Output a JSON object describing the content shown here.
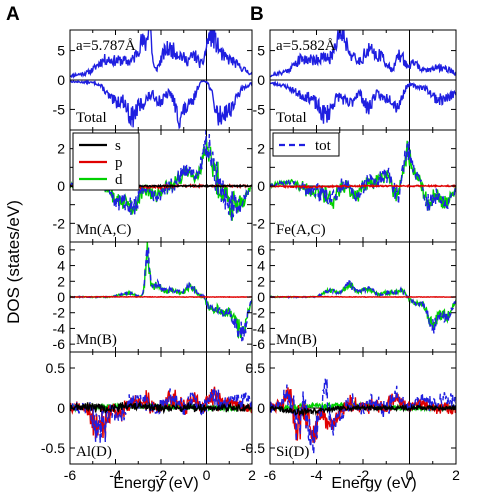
{
  "figure": {
    "panel_letters": [
      "A",
      "B"
    ],
    "ylabel": "DOS (states/eV)",
    "xlabel": "Energy (eV)"
  },
  "colors": {
    "total": "#1f1fe0",
    "s": "#000000",
    "p": "#e00000",
    "d": "#00d000",
    "tot": "#1f1fe0",
    "axis": "#000000"
  },
  "chart_data": [
    {
      "type": "line",
      "column": "A",
      "row": 1,
      "label": "Total",
      "annotation": "a=5.787Å",
      "xlim": [
        -6,
        2
      ],
      "ylim": [
        -8.5,
        8.5
      ],
      "yticks": [
        -5,
        0,
        5
      ],
      "series": [
        {
          "name": "Total",
          "color": "#1f1fe0",
          "x": [],
          "y": []
        }
      ]
    },
    {
      "type": "line",
      "column": "B",
      "row": 1,
      "label": "Total",
      "annotation": "a=5.582Å",
      "xlim": [
        -6,
        2
      ],
      "ylim": [
        -8.5,
        8.5
      ],
      "yticks": [
        -5,
        0,
        5
      ],
      "series": [
        {
          "name": "Total",
          "color": "#1f1fe0",
          "x": [],
          "y": []
        }
      ]
    },
    {
      "type": "line",
      "column": "A",
      "row": 2,
      "label": "Mn(A,C)",
      "xlim": [
        -6,
        2
      ],
      "ylim": [
        -3,
        3
      ],
      "yticks": [
        -2,
        -1,
        0,
        1,
        2
      ],
      "legend": {
        "entries": [
          "s",
          "p",
          "d"
        ],
        "placement": "top-left"
      },
      "series": []
    },
    {
      "type": "line",
      "column": "B",
      "row": 2,
      "label": "Fe(A,C)",
      "xlim": [
        -6,
        2
      ],
      "ylim": [
        -3,
        3
      ],
      "yticks": [
        -2,
        -1,
        0,
        1,
        2
      ],
      "legend": {
        "entries": [
          "tot"
        ],
        "placement": "top-left"
      },
      "series": []
    },
    {
      "type": "line",
      "column": "A",
      "row": 3,
      "label": "Mn(B)",
      "xlim": [
        -6,
        2
      ],
      "ylim": [
        -7,
        7
      ],
      "yticks": [
        -6,
        -4,
        -2,
        0,
        2,
        4,
        6
      ],
      "series": []
    },
    {
      "type": "line",
      "column": "B",
      "row": 3,
      "label": "Mn(B)",
      "xlim": [
        -6,
        2
      ],
      "ylim": [
        -7,
        7
      ],
      "yticks": [
        -6,
        -4,
        -2,
        0,
        2,
        4,
        6
      ],
      "series": []
    },
    {
      "type": "line",
      "column": "A",
      "row": 4,
      "label": "Al(D)",
      "xlim": [
        -6,
        2
      ],
      "ylim": [
        -0.7,
        0.7
      ],
      "yticks": [
        -0.5,
        0,
        0.5
      ],
      "xticks": [
        -6,
        -4,
        -2,
        0,
        2
      ],
      "series": []
    },
    {
      "type": "line",
      "column": "B",
      "row": 4,
      "label": "Si(D)",
      "xlim": [
        -6,
        2
      ],
      "ylim": [
        -0.7,
        0.7
      ],
      "yticks": [
        -0.5,
        0,
        0.5
      ],
      "xticks": [
        -6,
        -4,
        -2,
        0,
        2
      ],
      "series": []
    }
  ]
}
